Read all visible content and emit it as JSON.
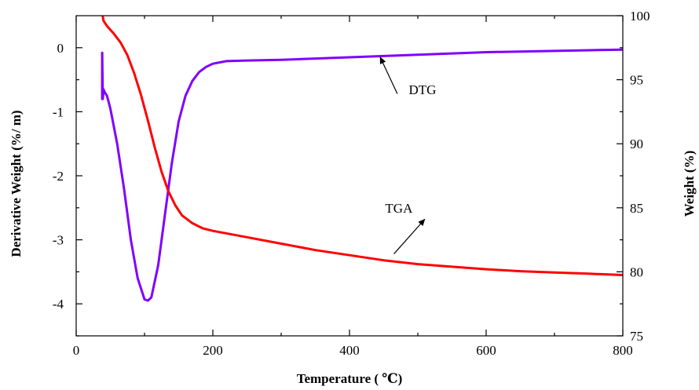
{
  "chart_data": {
    "type": "line",
    "xlabel": "Temperature ( ℃)",
    "ylabel_left": "Derivative Weight (%/ m)",
    "ylabel_right": "Weight (%)",
    "xlim": [
      0,
      800
    ],
    "ylim_left": [
      -4.5,
      0.5
    ],
    "ylim_right": [
      75,
      100
    ],
    "x_ticks": [
      0,
      200,
      400,
      600,
      800
    ],
    "x_tick_labels": [
      "0",
      "200",
      "400",
      "600",
      "800"
    ],
    "y_left_ticks": [
      0,
      -1,
      -2,
      -3,
      -4
    ],
    "y_left_tick_labels": [
      "0",
      "-1",
      "-2",
      "-3",
      "-4"
    ],
    "y_right_ticks": [
      100,
      95,
      90,
      85,
      80,
      75
    ],
    "y_right_tick_labels": [
      "100",
      "95",
      "90",
      "85",
      "80",
      "75"
    ],
    "grid": false,
    "series": [
      {
        "name": "DTG",
        "axis": "left",
        "color": "#8000ff",
        "x": [
          38,
          38,
          39,
          40,
          42,
          45,
          50,
          60,
          70,
          80,
          90,
          100,
          105,
          110,
          120,
          130,
          140,
          150,
          160,
          170,
          180,
          190,
          200,
          220,
          250,
          300,
          400,
          500,
          600,
          700,
          800
        ],
        "y": [
          -0.8,
          -0.08,
          -0.8,
          -0.65,
          -0.7,
          -0.75,
          -0.95,
          -1.5,
          -2.2,
          -3.0,
          -3.6,
          -3.93,
          -3.95,
          -3.9,
          -3.4,
          -2.6,
          -1.8,
          -1.15,
          -0.75,
          -0.52,
          -0.38,
          -0.3,
          -0.25,
          -0.21,
          -0.2,
          -0.19,
          -0.15,
          -0.11,
          -0.07,
          -0.05,
          -0.03
        ]
      },
      {
        "name": "TGA",
        "axis": "right",
        "color": "#ff0000",
        "x": [
          37,
          40,
          45,
          55,
          65,
          75,
          85,
          95,
          105,
          115,
          125,
          135,
          145,
          155,
          170,
          185,
          200,
          250,
          300,
          350,
          400,
          450,
          500,
          550,
          600,
          650,
          700,
          750,
          800
        ],
        "y": [
          100.5,
          99.6,
          99.2,
          98.6,
          97.9,
          96.9,
          95.5,
          93.8,
          91.8,
          89.7,
          87.8,
          86.3,
          85.2,
          84.4,
          83.8,
          83.4,
          83.2,
          82.7,
          82.2,
          81.7,
          81.3,
          80.9,
          80.6,
          80.4,
          80.2,
          80.05,
          79.95,
          79.85,
          79.75
        ]
      }
    ],
    "annotations": [
      {
        "text": "DTG",
        "x": 500,
        "y_left": -0.65,
        "arrow_from": [
          470,
          -0.72
        ],
        "arrow_to": [
          445,
          -0.15
        ]
      },
      {
        "text": "TGA",
        "x": 470,
        "y_left": -2.5,
        "arrow_from": [
          465,
          81.4
        ],
        "arrow_to": [
          510,
          84.1
        ]
      }
    ]
  }
}
